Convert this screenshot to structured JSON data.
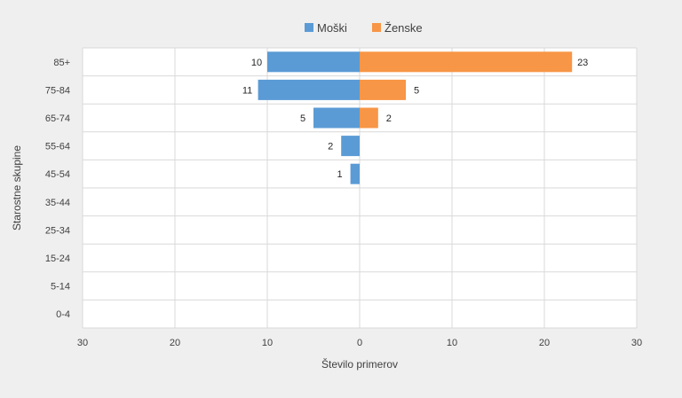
{
  "chart_data": {
    "type": "bar",
    "orientation": "horizontal",
    "layout": "population-pyramid",
    "categories": [
      "85+",
      "75-84",
      "65-74",
      "55-64",
      "45-54",
      "35-44",
      "25-34",
      "15-24",
      "5-14",
      "0-4"
    ],
    "series": [
      {
        "name": "Moški",
        "values": [
          10,
          11,
          5,
          2,
          1,
          0,
          0,
          0,
          0,
          0
        ],
        "color": "#5b9bd5",
        "side": "left"
      },
      {
        "name": "Ženske",
        "values": [
          23,
          5,
          2,
          0,
          0,
          0,
          0,
          0,
          0,
          0
        ],
        "color": "#f79646",
        "side": "right"
      }
    ],
    "xlabel": "Število primerov",
    "ylabel": "Starostne skupine",
    "xlim": [
      -30,
      30
    ],
    "xticks": [
      -30,
      -20,
      -10,
      0,
      10,
      20,
      30
    ],
    "xtick_labels": [
      "30",
      "20",
      "10",
      "0",
      "10",
      "20",
      "30"
    ],
    "grid": true,
    "legend": "top-center",
    "data_labels": true
  }
}
